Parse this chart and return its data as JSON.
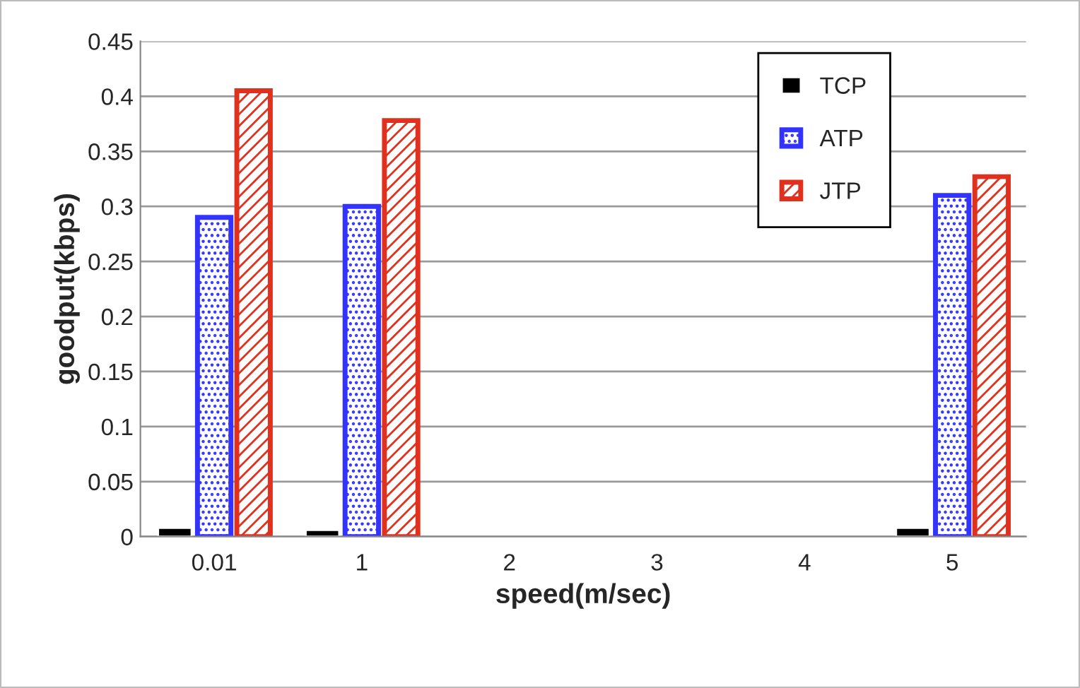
{
  "chart_data": {
    "type": "bar",
    "xlabel": "speed(m/sec)",
    "ylabel": "goodput(kbps)",
    "categories": [
      "0.01",
      "1",
      "2",
      "3",
      "4",
      "5"
    ],
    "series": [
      {
        "name": "TCP",
        "color": "#000000",
        "values": [
          0.008,
          0.006,
          null,
          null,
          null,
          0.008
        ]
      },
      {
        "name": "ATP",
        "color": "#3333ff",
        "values": [
          0.29,
          0.3,
          null,
          null,
          null,
          0.31
        ]
      },
      {
        "name": "JTP",
        "color": "#e0301e",
        "values": [
          0.405,
          0.378,
          null,
          null,
          null,
          0.327
        ]
      }
    ],
    "ylim": [
      0,
      0.45
    ],
    "yticks": [
      {
        "value": 0,
        "label": "0"
      },
      0.05,
      0.1,
      0.15,
      0.2,
      0.25,
      0.3,
      0.35,
      0.4,
      0.45
    ],
    "grid": "y",
    "legend": "top right"
  }
}
